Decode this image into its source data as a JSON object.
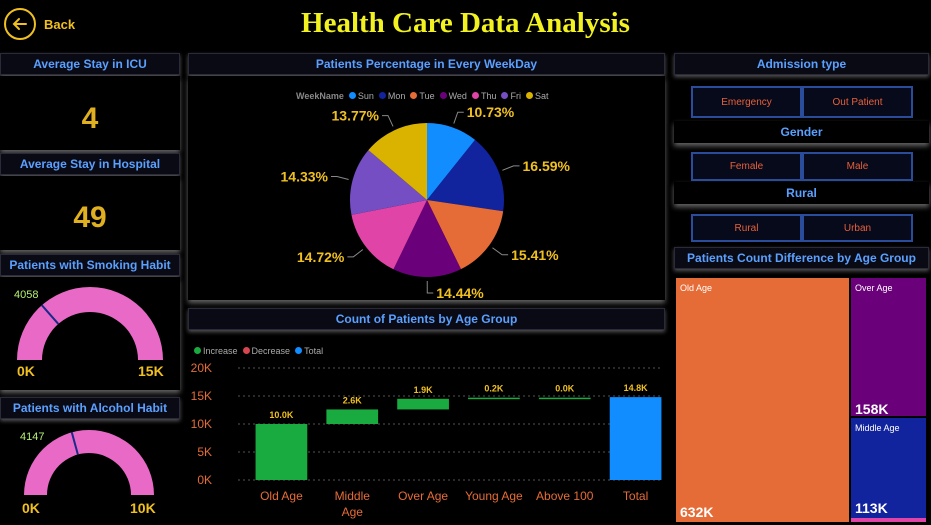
{
  "header": {
    "title": "Health Care Data Analysis",
    "back_label": "Back"
  },
  "colors": {
    "accent": "#f2f220",
    "panel_title": "#5aa0ff",
    "kpi": "#e0b020",
    "gauge": "#e86ac6"
  },
  "kpis": {
    "icu": {
      "title": "Average Stay in ICU",
      "value": "4"
    },
    "hospital": {
      "title": "Average Stay in Hospital",
      "value": "49"
    }
  },
  "gauges": {
    "smoking": {
      "title": "Patients with Smoking Habit",
      "value_label": "4058",
      "min": "0K",
      "max": "15K",
      "value": 4058,
      "max_value": 15000
    },
    "alcohol": {
      "title": "Patients with Alcohol Habit",
      "value_label": "4147",
      "min": "0K",
      "max": "10K",
      "value": 4147,
      "max_value": 10000
    }
  },
  "pie": {
    "title": "Patients Percentage in Every WeekDay",
    "legend_title": "WeekName",
    "legend": [
      "Sun",
      "Mon",
      "Tue",
      "Wed",
      "Thu",
      "Fri",
      "Sat"
    ]
  },
  "waterfall": {
    "title": "Count of Patients by Age Group",
    "legend": [
      "Increase",
      "Decrease",
      "Total"
    ],
    "y_ticks": [
      "20K",
      "15K",
      "10K",
      "5K",
      "0K"
    ]
  },
  "slicers": {
    "admission": {
      "title": "Admission type",
      "options": [
        "Emergency",
        "Out Patient"
      ]
    },
    "gender": {
      "title": "Gender",
      "options": [
        "Female",
        "Male"
      ]
    },
    "rural": {
      "title": "Rural",
      "options": [
        "Rural",
        "Urban"
      ]
    }
  },
  "treemap": {
    "title": "Patients Count Difference by Age Group",
    "items": [
      {
        "label": "Old Age",
        "value_label": "632K"
      },
      {
        "label": "Over Age",
        "value_label": "158K"
      },
      {
        "label": "Middle Age",
        "value_label": "113K"
      }
    ]
  },
  "chart_data": [
    {
      "type": "pie",
      "title": "Patients Percentage in Every WeekDay",
      "categories": [
        "Sun",
        "Mon",
        "Tue",
        "Wed",
        "Thu",
        "Fri",
        "Sat"
      ],
      "values": [
        10.73,
        16.59,
        15.41,
        14.44,
        14.72,
        14.33,
        13.77
      ],
      "labels": [
        "10.73%",
        "16.59%",
        "15.41%",
        "14.44%",
        "14.72%",
        "14.33%",
        "13.77%"
      ],
      "colors": [
        "#118dff",
        "#12239e",
        "#e66c37",
        "#6b007b",
        "#e044a7",
        "#744ec2",
        "#d9b300"
      ],
      "legend_position": "top"
    },
    {
      "type": "bar",
      "subtype": "waterfall",
      "title": "Count of Patients by Age Group",
      "categories": [
        "Old Age",
        "Middle Age",
        "Over Age",
        "Young Age",
        "Above 100",
        "Total"
      ],
      "values": [
        10.0,
        2.6,
        1.9,
        0.2,
        0.0,
        14.8
      ],
      "data_labels": [
        "10.0K",
        "2.6K",
        "1.9K",
        "0.2K",
        "0.0K",
        "14.8K"
      ],
      "kinds": [
        "increase",
        "increase",
        "increase",
        "increase",
        "increase",
        "total"
      ],
      "unit": "K",
      "ylim": [
        0,
        20
      ],
      "y_ticks": [
        0,
        5,
        10,
        15,
        20
      ],
      "grid": true,
      "colors": {
        "increase": "#1aab40",
        "decrease": "#d64550",
        "total": "#118dff"
      }
    },
    {
      "type": "treemap",
      "title": "Patients Count Difference by Age Group",
      "categories": [
        "Old Age",
        "Over Age",
        "Middle Age"
      ],
      "values": [
        632,
        158,
        113
      ],
      "unit": "K",
      "colors": [
        "#e66c37",
        "#6b007b",
        "#12239e"
      ]
    }
  ]
}
